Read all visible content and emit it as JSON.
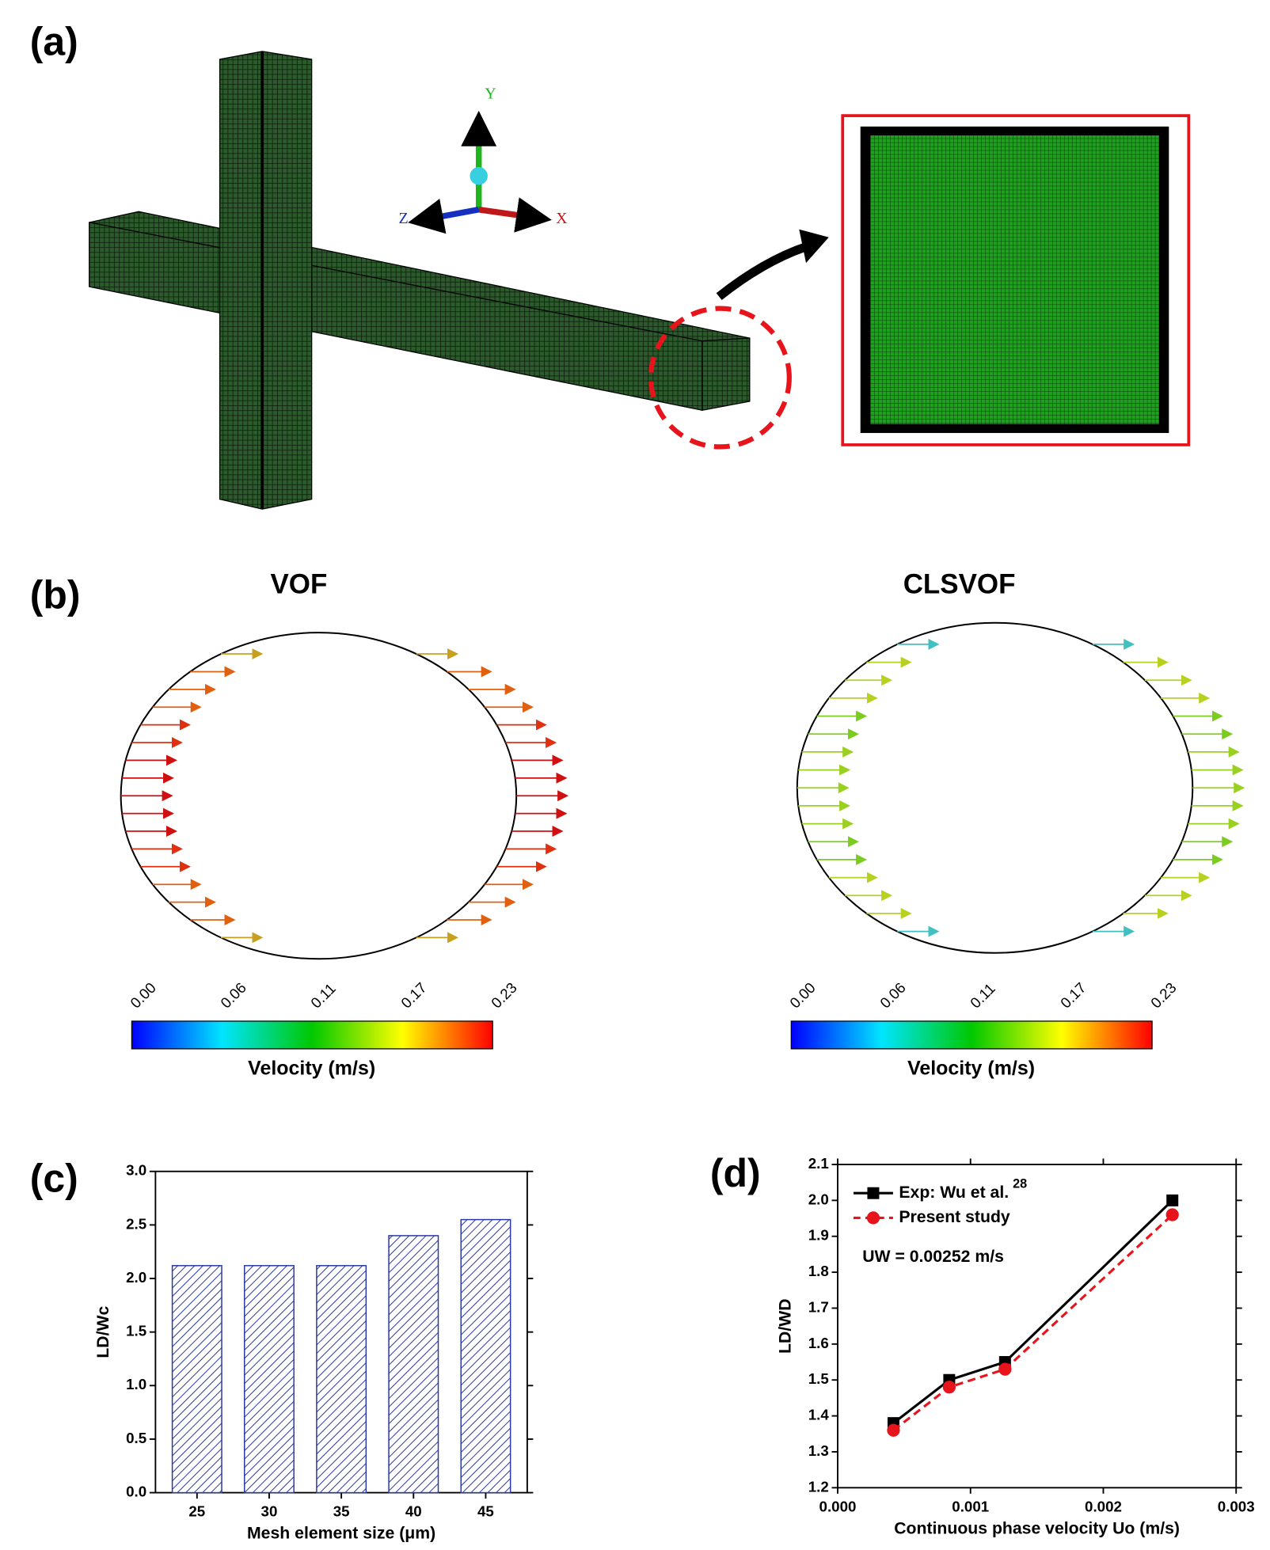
{
  "panel_labels": [
    "(a)",
    "(b)",
    "(c)",
    "(d)"
  ],
  "axes_labels": [
    "Y",
    "Z",
    "X"
  ],
  "panel_b": {
    "titles": [
      "VOF",
      "CLSVOF"
    ],
    "colorbar_ticks": [
      "0.00",
      "0.06",
      "0.11",
      "0.17",
      "0.23"
    ],
    "colorbar_label": "Velocity (m/s)"
  },
  "chart_data": [
    {
      "type": "bar",
      "categories": [
        "25",
        "30",
        "35",
        "40",
        "45"
      ],
      "values": [
        2.12,
        2.12,
        2.12,
        2.4,
        2.55
      ],
      "color": "#2b3aa0",
      "x_label": "Mesh element size (μm)",
      "y_label": "LD/Wc",
      "ylim": [
        0,
        3
      ],
      "yticks": [
        {
          "value": 0,
          "label": "0.0"
        },
        0.5,
        {
          "value": 1,
          "label": "1.0"
        },
        1.5,
        {
          "value": 2,
          "label": "2.0"
        },
        2.5,
        {
          "value": 3,
          "label": "3.0"
        }
      ]
    },
    {
      "type": "line",
      "x": [
        0.00042,
        0.00084,
        0.00126,
        0.00252
      ],
      "series": [
        {
          "name": "Exp: Wu et al.",
          "name_superscript": "28",
          "color": "#000000",
          "values": [
            1.38,
            1.5,
            1.55,
            2.0
          ]
        },
        {
          "name": "Present study",
          "color": "#e8141c",
          "values": [
            1.36,
            1.48,
            1.53,
            1.96
          ]
        }
      ],
      "annotation": "UW = 0.00252 m/s",
      "x_label": "Continuous phase velocity Uo (m/s)",
      "y_label": "LD/WD",
      "xlim": [
        0,
        0.003
      ],
      "xticks": [
        {
          "value": 0,
          "label": "0.000"
        },
        {
          "value": 0.001,
          "label": "0.001"
        },
        {
          "value": 0.002,
          "label": "0.002"
        },
        {
          "value": 0.003,
          "label": "0.003"
        }
      ],
      "ylim": [
        1.2,
        2.1
      ],
      "yticks": [
        1.2,
        1.3,
        1.4,
        1.5,
        1.6,
        1.7,
        1.8,
        1.9,
        {
          "value": 2,
          "label": "2.0"
        },
        2.1
      ]
    }
  ]
}
